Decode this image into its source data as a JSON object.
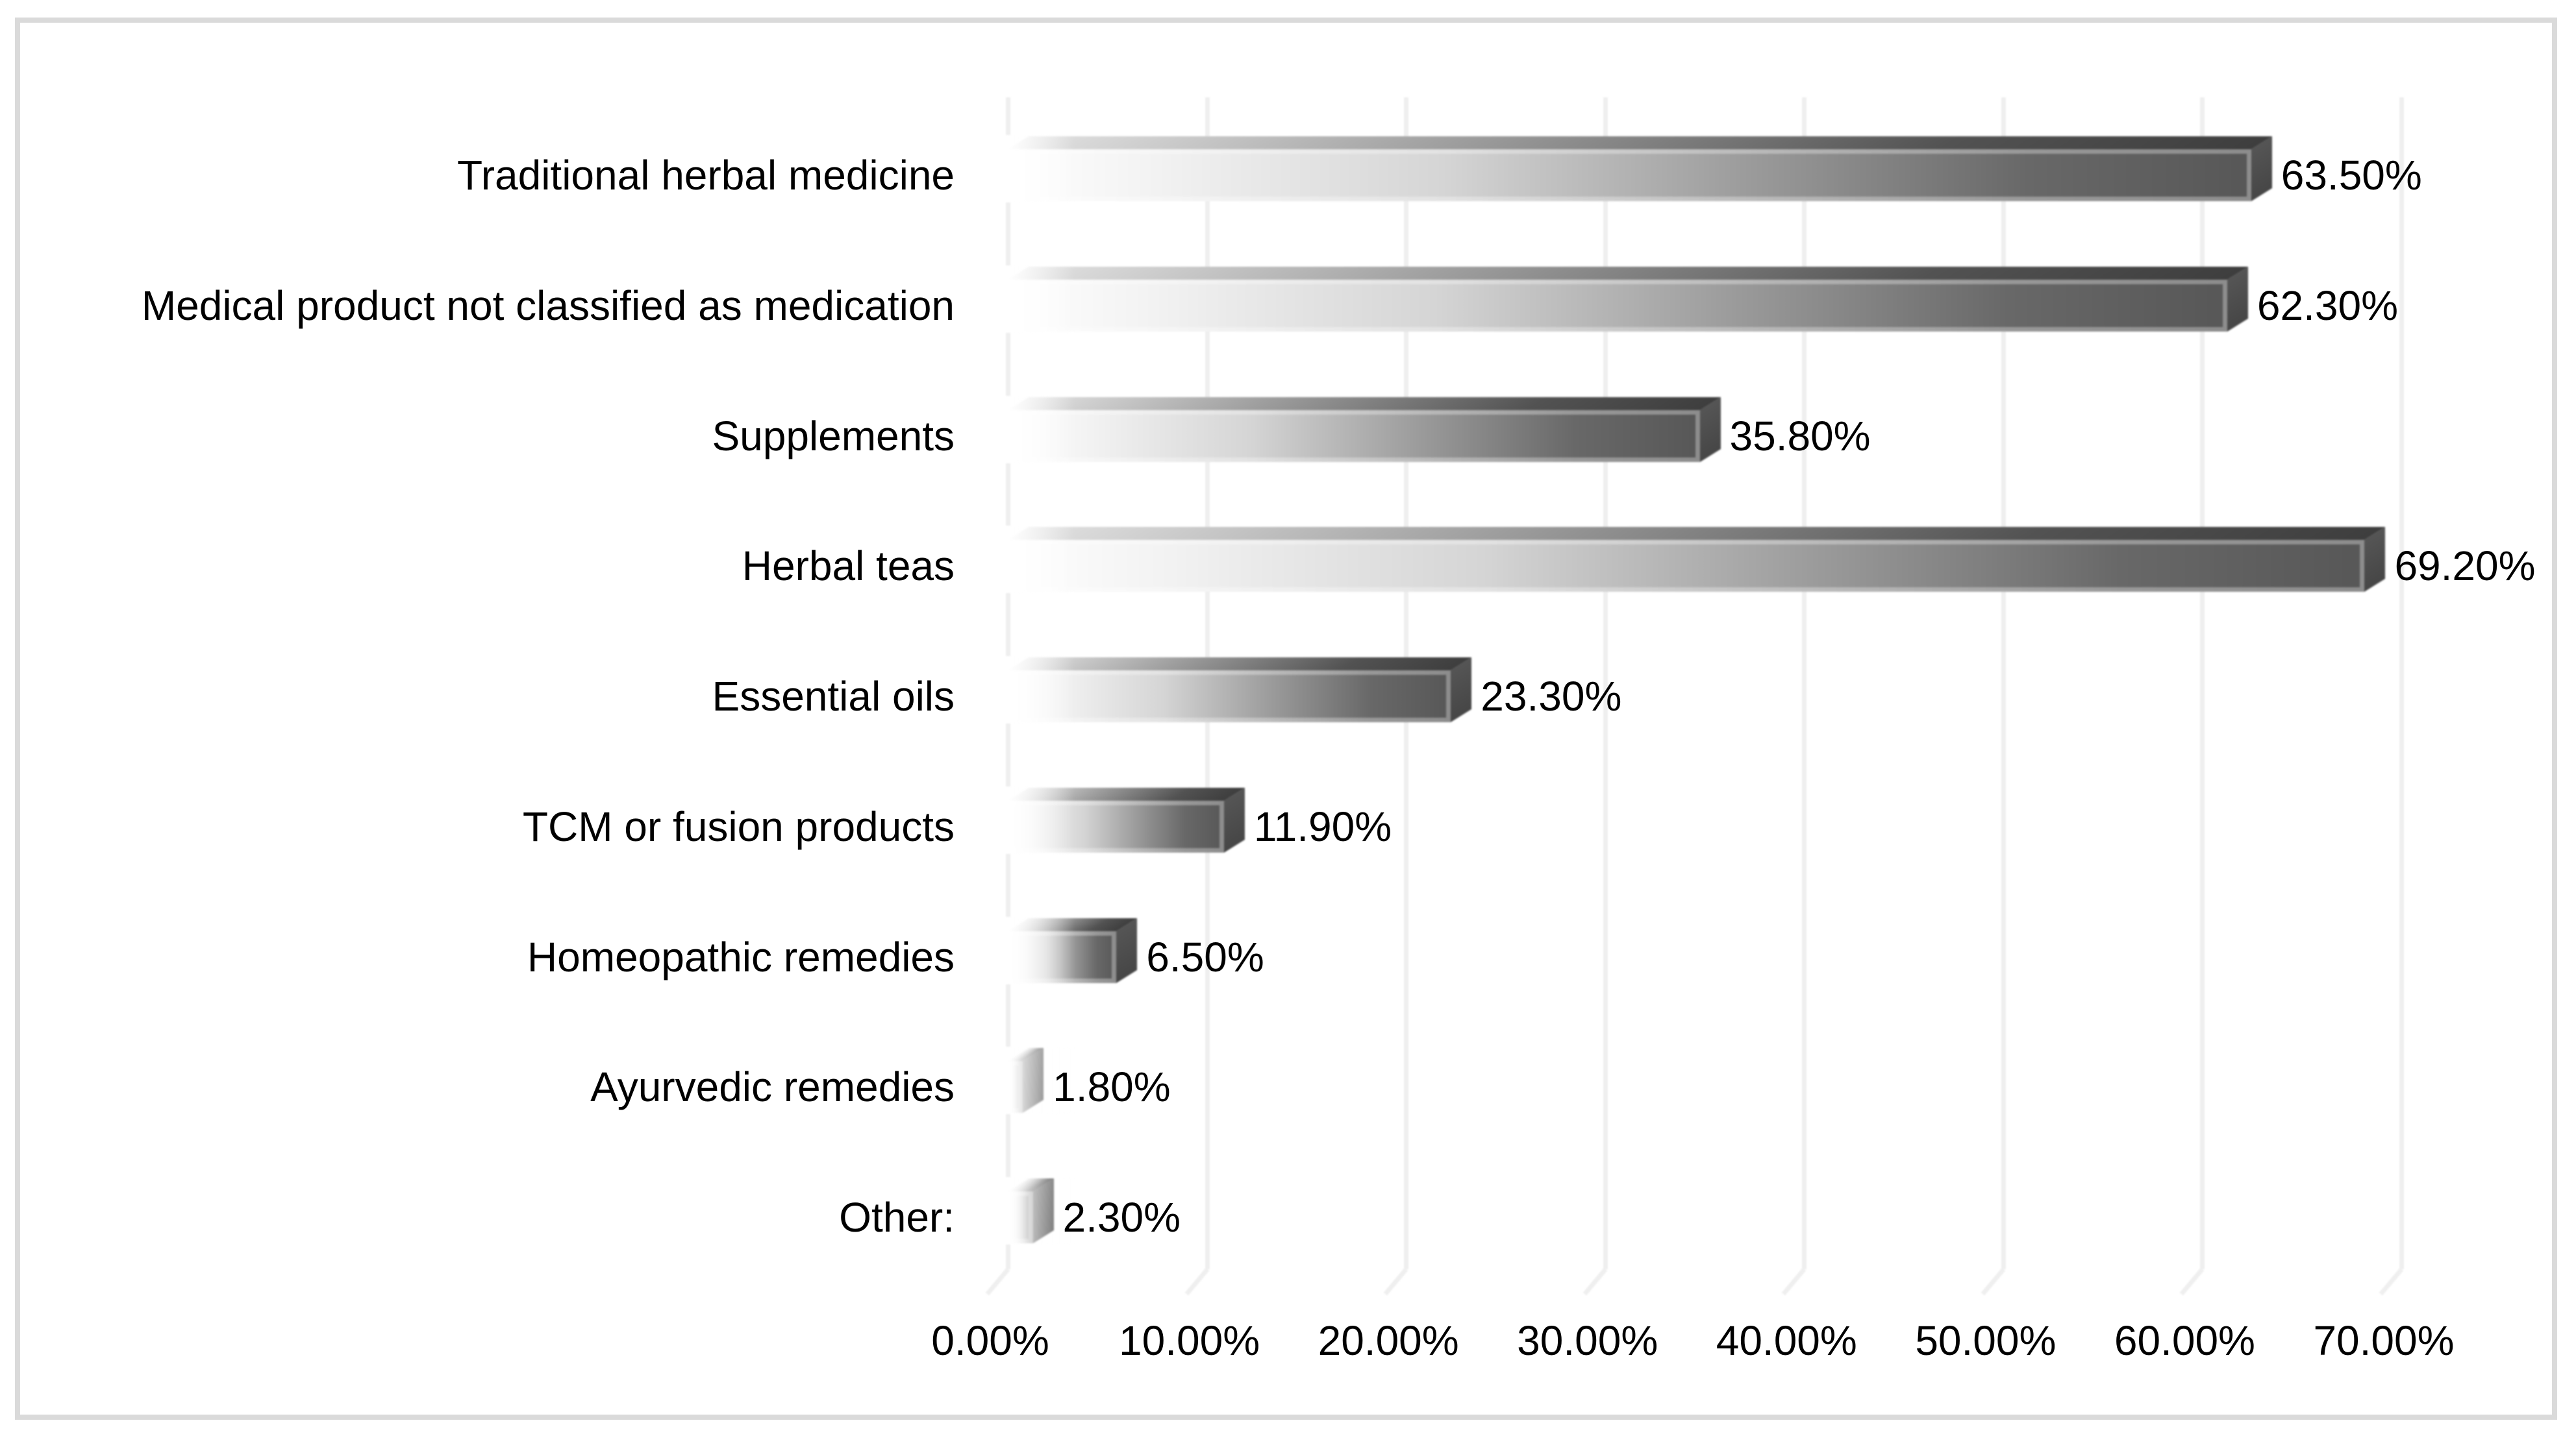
{
  "chart_data": {
    "type": "bar",
    "orientation": "horizontal",
    "title": "",
    "categories": [
      "Traditional herbal medicine",
      "Medical product not classified as medication",
      "Supplements",
      "Herbal teas",
      "Essential oils",
      "TCM or fusion products",
      "Homeopathic remedies",
      "Ayurvedic remedies",
      "Other:"
    ],
    "values": [
      63.5,
      62.3,
      35.8,
      69.2,
      23.3,
      11.9,
      6.5,
      1.8,
      2.3
    ],
    "value_labels": [
      "63.50%",
      "62.30%",
      "35.80%",
      "69.20%",
      "23.30%",
      "11.90%",
      "6.50%",
      "1.80%",
      "2.30%"
    ],
    "x_tick_labels": [
      "0.00%",
      "10.00%",
      "20.00%",
      "30.00%",
      "40.00%",
      "50.00%",
      "60.00%",
      "70.00%"
    ],
    "xlim": [
      0,
      70
    ],
    "x_tick_step": 10,
    "grid": true,
    "legend": false,
    "bar_style": "3d-gray-gradient"
  },
  "colors": {
    "background": "#ffffff",
    "frame_border": "#dadada",
    "gridline": "#efefef",
    "text": "#000000",
    "bar_front_gradient": [
      "#ffffff",
      "#f2f2f2",
      "#d5d5d5",
      "#9a9a9a",
      "#686868",
      "#575757"
    ],
    "bar_top_gradient": [
      "#e2e2e2",
      "#9e9e9e",
      "#525252",
      "#3e3e3e"
    ],
    "bar_side_gradient": [
      "#555555",
      "#464646"
    ]
  }
}
